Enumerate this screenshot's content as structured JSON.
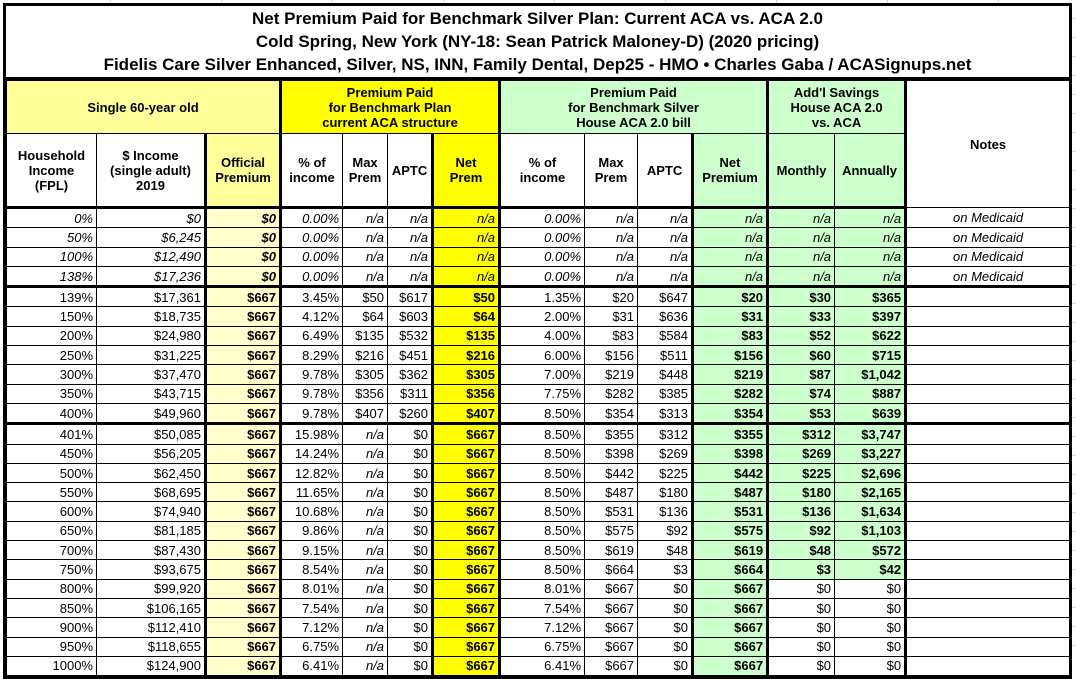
{
  "title": {
    "line1": "Net Premium Paid for Benchmark Silver Plan: Current ACA vs. ACA 2.0",
    "line2": "Cold Spring, New York (NY-18: Sean Patrick Maloney-D) (2020 pricing)",
    "line3": "Fidelis Care Silver Enhanced, Silver, NS, INN, Family Dental, Dep25 - HMO • Charles Gaba / ACASignups.net"
  },
  "header": {
    "group_person": "Single 60-year old",
    "group_current_aca": "Premium Paid\nfor Benchmark Plan\ncurrent ACA structure",
    "group_aca2": "Premium Paid\nfor Benchmark Silver\nHouse ACA 2.0 bill",
    "group_savings": "Add'l Savings\nHouse ACA 2.0\nvs. ACA",
    "notes_label": "Notes",
    "columns": [
      "Household\nIncome\n(FPL)",
      "$ Income\n(single adult)\n2019",
      "Official\nPremium",
      "% of\nincome",
      "Max\nPrem",
      "APTC",
      "Net\nPrem",
      "% of\nincome",
      "Max\nPrem",
      "APTC",
      "Net\nPremium",
      "Monthly",
      "Annually"
    ]
  },
  "colors": {
    "pale_yellow_header": "#FFFF99",
    "pale_yellow_data": "#FFFFCC",
    "gold": "#FFFF00",
    "light_green": "#CCFFCC",
    "border": "#000000"
  },
  "chart_data": {
    "type": "table",
    "title": "Net Premium Paid for Benchmark Silver Plan: Current ACA vs. ACA 2.0",
    "column_keys": [
      "fpl",
      "income_2019",
      "official_premium",
      "aca_pct_of_income",
      "aca_max_prem",
      "aca_aptc",
      "aca_net_prem",
      "aca2_pct_of_income",
      "aca2_max_prem",
      "aca2_aptc",
      "aca2_net_premium",
      "savings_monthly",
      "savings_annually",
      "notes"
    ],
    "rows": [
      [
        "0%",
        "$0",
        "$0",
        "0.00%",
        "n/a",
        "n/a",
        "n/a",
        "0.00%",
        "n/a",
        "n/a",
        "n/a",
        "n/a",
        "n/a",
        "on Medicaid"
      ],
      [
        "50%",
        "$6,245",
        "$0",
        "0.00%",
        "n/a",
        "n/a",
        "n/a",
        "0.00%",
        "n/a",
        "n/a",
        "n/a",
        "n/a",
        "n/a",
        "on Medicaid"
      ],
      [
        "100%",
        "$12,490",
        "$0",
        "0.00%",
        "n/a",
        "n/a",
        "n/a",
        "0.00%",
        "n/a",
        "n/a",
        "n/a",
        "n/a",
        "n/a",
        "on Medicaid"
      ],
      [
        "138%",
        "$17,236",
        "$0",
        "0.00%",
        "n/a",
        "n/a",
        "n/a",
        "0.00%",
        "n/a",
        "n/a",
        "n/a",
        "n/a",
        "n/a",
        "on Medicaid"
      ],
      [
        "139%",
        "$17,361",
        "$667",
        "3.45%",
        "$50",
        "$617",
        "$50",
        "1.35%",
        "$20",
        "$647",
        "$20",
        "$30",
        "$365",
        ""
      ],
      [
        "150%",
        "$18,735",
        "$667",
        "4.12%",
        "$64",
        "$603",
        "$64",
        "2.00%",
        "$31",
        "$636",
        "$31",
        "$33",
        "$397",
        ""
      ],
      [
        "200%",
        "$24,980",
        "$667",
        "6.49%",
        "$135",
        "$532",
        "$135",
        "4.00%",
        "$83",
        "$584",
        "$83",
        "$52",
        "$622",
        ""
      ],
      [
        "250%",
        "$31,225",
        "$667",
        "8.29%",
        "$216",
        "$451",
        "$216",
        "6.00%",
        "$156",
        "$511",
        "$156",
        "$60",
        "$715",
        ""
      ],
      [
        "300%",
        "$37,470",
        "$667",
        "9.78%",
        "$305",
        "$362",
        "$305",
        "7.00%",
        "$219",
        "$448",
        "$219",
        "$87",
        "$1,042",
        ""
      ],
      [
        "350%",
        "$43,715",
        "$667",
        "9.78%",
        "$356",
        "$311",
        "$356",
        "7.75%",
        "$282",
        "$385",
        "$282",
        "$74",
        "$887",
        ""
      ],
      [
        "400%",
        "$49,960",
        "$667",
        "9.78%",
        "$407",
        "$260",
        "$407",
        "8.50%",
        "$354",
        "$313",
        "$354",
        "$53",
        "$639",
        ""
      ],
      [
        "401%",
        "$50,085",
        "$667",
        "15.98%",
        "n/a",
        "$0",
        "$667",
        "8.50%",
        "$355",
        "$312",
        "$355",
        "$312",
        "$3,747",
        ""
      ],
      [
        "450%",
        "$56,205",
        "$667",
        "14.24%",
        "n/a",
        "$0",
        "$667",
        "8.50%",
        "$398",
        "$269",
        "$398",
        "$269",
        "$3,227",
        ""
      ],
      [
        "500%",
        "$62,450",
        "$667",
        "12.82%",
        "n/a",
        "$0",
        "$667",
        "8.50%",
        "$442",
        "$225",
        "$442",
        "$225",
        "$2,696",
        ""
      ],
      [
        "550%",
        "$68,695",
        "$667",
        "11.65%",
        "n/a",
        "$0",
        "$667",
        "8.50%",
        "$487",
        "$180",
        "$487",
        "$180",
        "$2,165",
        ""
      ],
      [
        "600%",
        "$74,940",
        "$667",
        "10.68%",
        "n/a",
        "$0",
        "$667",
        "8.50%",
        "$531",
        "$136",
        "$531",
        "$136",
        "$1,634",
        ""
      ],
      [
        "650%",
        "$81,185",
        "$667",
        "9.86%",
        "n/a",
        "$0",
        "$667",
        "8.50%",
        "$575",
        "$92",
        "$575",
        "$92",
        "$1,103",
        ""
      ],
      [
        "700%",
        "$87,430",
        "$667",
        "9.15%",
        "n/a",
        "$0",
        "$667",
        "8.50%",
        "$619",
        "$48",
        "$619",
        "$48",
        "$572",
        ""
      ],
      [
        "750%",
        "$93,675",
        "$667",
        "8.54%",
        "n/a",
        "$0",
        "$667",
        "8.50%",
        "$664",
        "$3",
        "$664",
        "$3",
        "$42",
        ""
      ],
      [
        "800%",
        "$99,920",
        "$667",
        "8.01%",
        "n/a",
        "$0",
        "$667",
        "8.01%",
        "$667",
        "$0",
        "$667",
        "$0",
        "$0",
        ""
      ],
      [
        "850%",
        "$106,165",
        "$667",
        "7.54%",
        "n/a",
        "$0",
        "$667",
        "7.54%",
        "$667",
        "$0",
        "$667",
        "$0",
        "$0",
        ""
      ],
      [
        "900%",
        "$112,410",
        "$667",
        "7.12%",
        "n/a",
        "$0",
        "$667",
        "7.12%",
        "$667",
        "$0",
        "$667",
        "$0",
        "$0",
        ""
      ],
      [
        "950%",
        "$118,655",
        "$667",
        "6.75%",
        "n/a",
        "$0",
        "$667",
        "6.75%",
        "$667",
        "$0",
        "$667",
        "$0",
        "$0",
        ""
      ],
      [
        "1000%",
        "$124,900",
        "$667",
        "6.41%",
        "n/a",
        "$0",
        "$667",
        "6.41%",
        "$667",
        "$0",
        "$667",
        "$0",
        "$0",
        ""
      ]
    ]
  }
}
